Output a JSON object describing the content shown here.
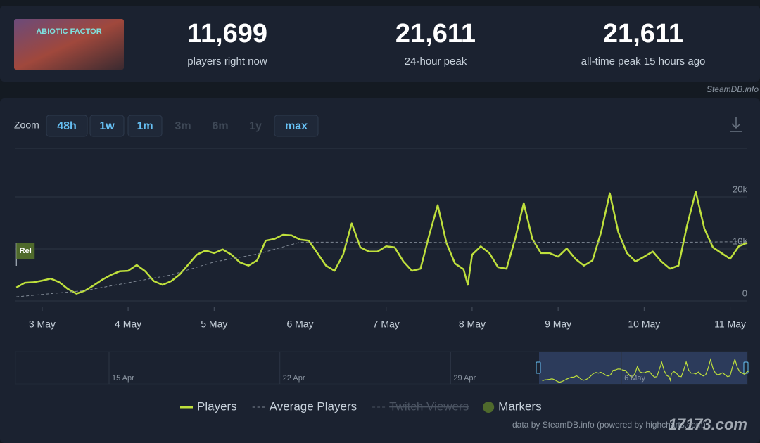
{
  "header": {
    "game_logo": "ABIOTIC FACTOR",
    "stats": [
      {
        "value": "11,699",
        "label": "players right now"
      },
      {
        "value": "21,611",
        "label": "24-hour peak"
      },
      {
        "value": "21,611",
        "label": "all-time peak 15 hours ago"
      }
    ],
    "source": "SteamDB.info"
  },
  "zoom": {
    "label": "Zoom",
    "buttons": [
      {
        "text": "48h",
        "enabled": true
      },
      {
        "text": "1w",
        "enabled": true
      },
      {
        "text": "1m",
        "enabled": true
      },
      {
        "text": "3m",
        "enabled": false
      },
      {
        "text": "6m",
        "enabled": false
      },
      {
        "text": "1y",
        "enabled": false
      },
      {
        "text": "max",
        "enabled": true
      }
    ]
  },
  "chart_data": {
    "type": "line",
    "x": [
      2.7,
      2.8,
      2.9,
      3.0,
      3.1,
      3.2,
      3.3,
      3.4,
      3.5,
      3.6,
      3.7,
      3.8,
      3.9,
      4.0,
      4.1,
      4.2,
      4.3,
      4.4,
      4.5,
      4.6,
      4.7,
      4.8,
      4.9,
      5.0,
      5.1,
      5.2,
      5.3,
      5.4,
      5.5,
      5.6,
      5.7,
      5.8,
      5.9,
      6.0,
      6.1,
      6.2,
      6.3,
      6.4,
      6.5,
      6.6,
      6.7,
      6.8,
      6.9,
      7.0,
      7.1,
      7.2,
      7.3,
      7.4,
      7.5,
      7.6,
      7.7,
      7.8,
      7.9,
      7.95,
      8.0,
      8.1,
      8.2,
      8.3,
      8.4,
      8.5,
      8.6,
      8.7,
      8.8,
      8.9,
      9.0,
      9.1,
      9.2,
      9.3,
      9.4,
      9.5,
      9.6,
      9.7,
      9.8,
      9.9,
      10.0,
      10.1,
      10.2,
      10.3,
      10.4,
      10.5,
      10.6,
      10.7,
      10.8,
      10.9,
      11.0,
      11.1,
      11.2
    ],
    "series": [
      {
        "name": "Players",
        "color": "#bfe03c",
        "values": [
          2600,
          3500,
          3600,
          3900,
          4300,
          3600,
          2300,
          1400,
          2000,
          3000,
          4100,
          5000,
          5700,
          5800,
          6900,
          5700,
          3800,
          3100,
          3800,
          5100,
          7000,
          8900,
          9700,
          9200,
          9900,
          8900,
          7400,
          6800,
          7800,
          11600,
          11900,
          12700,
          12600,
          11800,
          11600,
          9200,
          6800,
          5800,
          8900,
          14900,
          10300,
          9500,
          9500,
          10500,
          10300,
          7600,
          5800,
          6200,
          12600,
          18400,
          11200,
          7200,
          6100,
          3100,
          8900,
          10500,
          9200,
          6500,
          6200,
          11900,
          18800,
          11900,
          9200,
          9200,
          8500,
          10100,
          8100,
          6800,
          7800,
          13200,
          20700,
          13200,
          9200,
          7600,
          8500,
          9500,
          7600,
          6200,
          6800,
          14600,
          21000,
          13900,
          10300,
          9200,
          8100,
          10500,
          11200
        ]
      },
      {
        "name": "Average Players",
        "color": "#7f8894",
        "dashed": true,
        "x": [
          2.7,
          3.5,
          4.5,
          5.0,
          5.5,
          6.0,
          7.0,
          8.0,
          9.0,
          10.0,
          11.2
        ],
        "values": [
          800,
          2000,
          5000,
          7500,
          9000,
          11300,
          11300,
          11200,
          11300,
          11200,
          11400
        ]
      },
      {
        "name": "Twitch Viewers",
        "color": "#4a5361",
        "visible": false
      }
    ],
    "markers": {
      "name": "Markers",
      "color": "#4f6a2c",
      "items": [
        {
          "label": "Rel",
          "x": 2.7
        }
      ]
    },
    "xlim": [
      2.69,
      11.2
    ],
    "xticks": [
      {
        "value": 3,
        "label": "3 May"
      },
      {
        "value": 4,
        "label": "4 May"
      },
      {
        "value": 5,
        "label": "5 May"
      },
      {
        "value": 6,
        "label": "6 May"
      },
      {
        "value": 7,
        "label": "7 May"
      },
      {
        "value": 8,
        "label": "8 May"
      },
      {
        "value": 9,
        "label": "9 May"
      },
      {
        "value": 10,
        "label": "10 May"
      },
      {
        "value": 11,
        "label": "11 May"
      }
    ],
    "ylim": [
      0,
      30000
    ],
    "yticks": [
      0,
      {
        "value": 10000,
        "label": "10k"
      },
      {
        "value": 20000,
        "label": "20k"
      }
    ],
    "grid": true,
    "legend": "bottom",
    "navigator_labels": [
      "15 Apr",
      "22 Apr",
      "29 Apr",
      "6 May"
    ]
  },
  "footer": {
    "credit": "data by SteamDB.info (powered by highcharts.com)",
    "watermark": "17173.com"
  }
}
